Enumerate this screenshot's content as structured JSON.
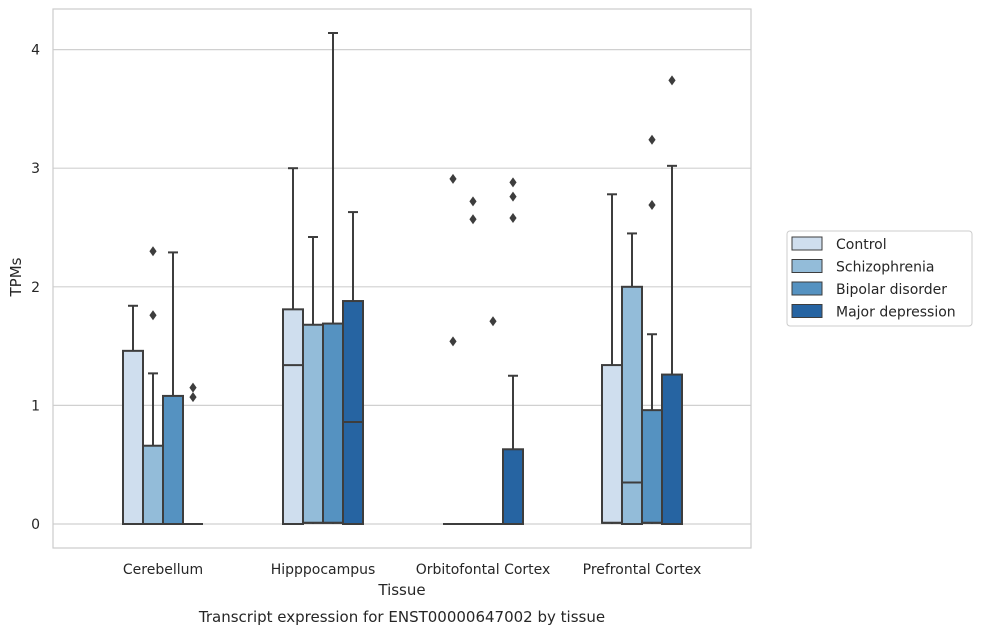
{
  "chart_data": {
    "type": "box",
    "xlabel": "Tissue",
    "ylabel": "TPMs",
    "caption": "Transcript expression for ENST00000647002 by tissue",
    "ylim": [
      -0.2,
      4.35
    ],
    "yticks": [
      0,
      1,
      2,
      3,
      4
    ],
    "ytick_labels": [
      "0",
      "1",
      "2",
      "3",
      "4"
    ],
    "grid": "horizontal",
    "legend_position": "right",
    "categories": [
      "Cerebellum",
      "Hipppocampus",
      "Orbitofontal Cortex",
      "Prefrontal Cortex"
    ],
    "series": [
      {
        "name": "Control",
        "color": "#cfdeee",
        "boxes": [
          {
            "low": 0,
            "q1": 0,
            "median": 0,
            "q3": 1.46,
            "high": 1.84,
            "outliers": []
          },
          {
            "low": 0,
            "q1": 0,
            "median": 1.34,
            "q3": 1.81,
            "high": 3.0,
            "outliers": []
          },
          {
            "low": 0,
            "q1": 0,
            "median": 0,
            "q3": 0,
            "high": 0,
            "outliers": [
              2.91,
              1.54
            ]
          },
          {
            "low": 0,
            "q1": 0.01,
            "median": 0.01,
            "q3": 1.34,
            "high": 2.78,
            "outliers": []
          }
        ]
      },
      {
        "name": "Schizophrenia",
        "color": "#93bcd9",
        "boxes": [
          {
            "low": 0,
            "q1": 0,
            "median": 0,
            "q3": 0.66,
            "high": 1.27,
            "outliers": [
              2.3,
              1.76
            ]
          },
          {
            "low": 0,
            "q1": 0.01,
            "median": 0.01,
            "q3": 1.68,
            "high": 2.42,
            "outliers": []
          },
          {
            "low": 0,
            "q1": 0,
            "median": 0,
            "q3": 0,
            "high": 0,
            "outliers": [
              2.72,
              2.57
            ]
          },
          {
            "low": 0,
            "q1": 0,
            "median": 0.35,
            "q3": 2.0,
            "high": 2.45,
            "outliers": []
          }
        ]
      },
      {
        "name": "Bipolar disorder",
        "color": "#5592c1",
        "boxes": [
          {
            "low": 0,
            "q1": 0,
            "median": 0,
            "q3": 1.08,
            "high": 2.29,
            "outliers": []
          },
          {
            "low": 0,
            "q1": 0.01,
            "median": 0.01,
            "q3": 1.69,
            "high": 4.14,
            "outliers": []
          },
          {
            "low": 0,
            "q1": 0,
            "median": 0,
            "q3": 0,
            "high": 0,
            "outliers": [
              1.71
            ]
          },
          {
            "low": 0,
            "q1": 0.01,
            "median": 0.01,
            "q3": 0.96,
            "high": 1.6,
            "outliers": [
              3.24,
              2.69
            ]
          }
        ]
      },
      {
        "name": "Major depression",
        "color": "#2664a2",
        "boxes": [
          {
            "low": 0,
            "q1": 0,
            "median": 0,
            "q3": 0,
            "high": 0,
            "outliers": [
              1.15,
              1.07
            ]
          },
          {
            "low": 0,
            "q1": 0,
            "median": 0.86,
            "q3": 1.88,
            "high": 2.63,
            "outliers": []
          },
          {
            "low": 0,
            "q1": 0,
            "median": 0,
            "q3": 0.63,
            "high": 1.25,
            "outliers": [
              2.88,
              2.76,
              2.58
            ]
          },
          {
            "low": 0,
            "q1": 0,
            "median": 0,
            "q3": 1.26,
            "high": 3.02,
            "outliers": [
              3.74
            ]
          }
        ]
      }
    ]
  }
}
